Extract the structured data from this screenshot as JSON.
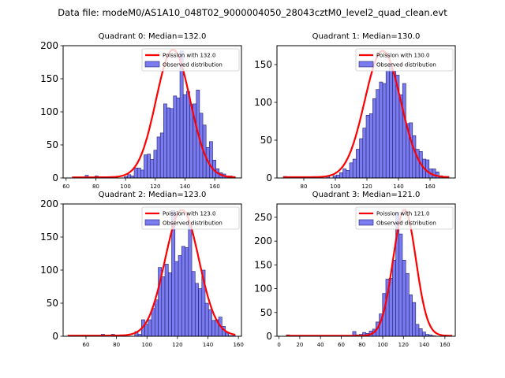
{
  "chart_data": {
    "type": "bar",
    "title": "Data file: modeM0/AS1A10_048T02_9000004050_28043cztM0_level2_quad_clean.evt",
    "colors": {
      "bar_fill": "#7b7bf0",
      "bar_edge": "#1e1e6e",
      "poisson_line": "#ff0000"
    },
    "panels": [
      {
        "title": "Quadrant 0: Median=132.0",
        "median": 132.0,
        "xlim": [
          58,
          178
        ],
        "ylim": [
          0,
          200
        ],
        "xticks": [
          60,
          80,
          100,
          120,
          140,
          160
        ],
        "yticks": [
          0,
          50,
          100,
          150,
          200
        ],
        "legend": {
          "position": "top-right",
          "line_label": "Poission with 132.0",
          "bar_label": "Observed distribution"
        },
        "poisson_peak": 193,
        "bins_start": 64,
        "bin_width": 2.2,
        "values": [
          0,
          0,
          0,
          0,
          4,
          0,
          0,
          3,
          0,
          0,
          0,
          0,
          0,
          0,
          0,
          0,
          2,
          5,
          3,
          15,
          15,
          12,
          35,
          36,
          28,
          42,
          62,
          68,
          112,
          106,
          105,
          124,
          121,
          192,
          126,
          131,
          111,
          112,
          133,
          98,
          80,
          46,
          55,
          27,
          14,
          8,
          6,
          3,
          3,
          1
        ]
      },
      {
        "title": "Quadrant 1: Median=130.0",
        "median": 130.0,
        "xlim": [
          63,
          176
        ],
        "ylim": [
          0,
          175
        ],
        "xticks": [
          80,
          100,
          120,
          140,
          160
        ],
        "yticks": [
          0,
          50,
          100,
          150
        ],
        "legend": {
          "position": "top-right",
          "line_label": "Poission with 130.0",
          "bar_label": "Observed distribution"
        },
        "poisson_peak": 167,
        "bins_start": 67,
        "bin_width": 2.1,
        "values": [
          2,
          0,
          0,
          0,
          0,
          0,
          0,
          0,
          0,
          0,
          0,
          2,
          0,
          2,
          0,
          3,
          4,
          7,
          12,
          10,
          20,
          25,
          38,
          52,
          66,
          83,
          85,
          105,
          117,
          127,
          125,
          142,
          152,
          141,
          136,
          110,
          125,
          72,
          73,
          56,
          38,
          35,
          25,
          24,
          12,
          12,
          8,
          3,
          2,
          2
        ]
      },
      {
        "title": "Quadrant 2: Median=123.0",
        "median": 123.0,
        "xlim": [
          45,
          162
        ],
        "ylim": [
          0,
          200
        ],
        "xticks": [
          60,
          80,
          100,
          120,
          140,
          160
        ],
        "yticks": [
          0,
          50,
          100,
          150,
          200
        ],
        "legend": {
          "position": "top-right",
          "line_label": "Poission with 123.0",
          "bar_label": "Observed distribution"
        },
        "poisson_peak": 190,
        "bins_start": 48,
        "bin_width": 2.2,
        "values": [
          0,
          0,
          0,
          0,
          0,
          0,
          0,
          0,
          0,
          0,
          3,
          0,
          0,
          3,
          0,
          0,
          0,
          0,
          0,
          0,
          7,
          3,
          25,
          18,
          25,
          42,
          55,
          104,
          90,
          109,
          96,
          190,
          113,
          122,
          136,
          134,
          172,
          98,
          80,
          72,
          100,
          50,
          40,
          24,
          25,
          29,
          15,
          5,
          1,
          1
        ]
      },
      {
        "title": "Quadrant 3: Median=121.0",
        "median": 121.0,
        "xlim": [
          -2,
          170
        ],
        "ylim": [
          0,
          278
        ],
        "xticks": [
          0,
          20,
          40,
          60,
          80,
          100,
          120,
          140,
          160
        ],
        "yticks": [
          0,
          50,
          100,
          150,
          200,
          250
        ],
        "legend": {
          "position": "top-right",
          "line_label": "Poission with 121.0",
          "bar_label": "Observed distribution"
        },
        "poisson_peak": 265,
        "bins_start": 7,
        "bin_width": 3.2,
        "values": [
          3,
          0,
          0,
          0,
          0,
          0,
          0,
          0,
          0,
          0,
          0,
          0,
          0,
          0,
          0,
          0,
          0,
          0,
          2,
          0,
          10,
          3,
          4,
          8,
          6,
          11,
          15,
          30,
          47,
          90,
          120,
          122,
          160,
          261,
          215,
          160,
          132,
          87,
          71,
          25,
          16,
          9,
          4,
          3,
          1,
          0,
          0,
          0,
          0,
          0
        ]
      }
    ]
  }
}
